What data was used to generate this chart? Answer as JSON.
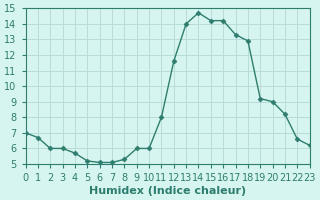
{
  "x": [
    0,
    1,
    2,
    3,
    4,
    5,
    6,
    7,
    8,
    9,
    10,
    11,
    12,
    13,
    14,
    15,
    16,
    17,
    18,
    19,
    20,
    21,
    22,
    23
  ],
  "y": [
    7.0,
    6.7,
    6.0,
    6.0,
    5.7,
    5.2,
    5.1,
    5.1,
    5.3,
    6.0,
    6.0,
    8.0,
    11.6,
    14.0,
    14.7,
    14.2,
    14.2,
    13.3,
    12.9,
    9.2,
    9.0,
    8.2,
    6.6,
    6.2
  ],
  "line_color": "#2e7d6e",
  "marker": "D",
  "marker_size": 2.5,
  "bg_color": "#d6f5f0",
  "grid_color": "#b8ddd8",
  "xlabel": "Humidex (Indice chaleur)",
  "ylim": [
    5,
    15
  ],
  "xlim": [
    0,
    23
  ],
  "yticks": [
    5,
    6,
    7,
    8,
    9,
    10,
    11,
    12,
    13,
    14,
    15
  ],
  "xticks": [
    0,
    1,
    2,
    3,
    4,
    5,
    6,
    7,
    8,
    9,
    10,
    11,
    12,
    13,
    14,
    15,
    16,
    17,
    18,
    19,
    20,
    21,
    22,
    23
  ],
  "tick_color": "#2e7d6e",
  "label_color": "#2e7d6e",
  "axis_color": "#2e7d6e",
  "font_size": 7,
  "xlabel_fontsize": 8
}
